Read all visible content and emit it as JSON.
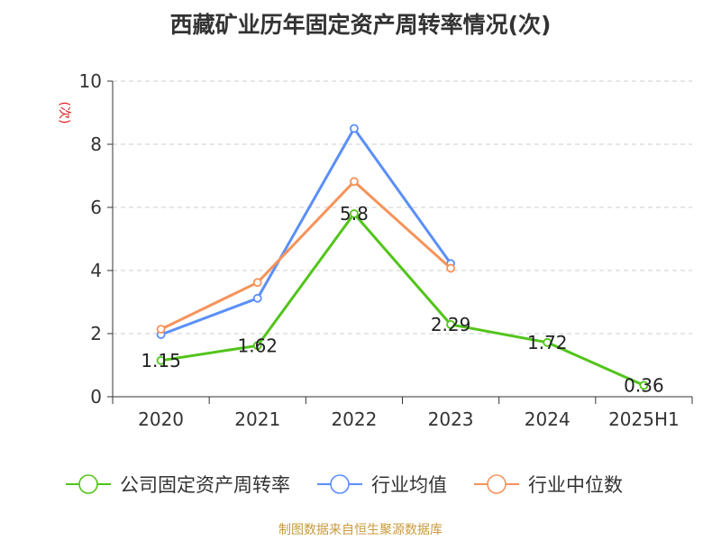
{
  "chart_data": {
    "type": "line",
    "title": "西藏矿业历年固定资产周转率情况(次)",
    "ylabel": "(次)",
    "xlabel": "",
    "categories": [
      "2020",
      "2021",
      "2022",
      "2023",
      "2024",
      "2025H1"
    ],
    "ylim": [
      0,
      10
    ],
    "yticks": [
      0,
      2,
      4,
      6,
      8,
      10
    ],
    "grid": true,
    "legend_position": "bottom",
    "series": [
      {
        "name": "公司固定资产周转率",
        "color": "#52c41a",
        "values": [
          1.15,
          1.62,
          5.8,
          2.29,
          1.72,
          0.36
        ],
        "labels": [
          "1.15",
          "1.62",
          "5.8",
          "2.29",
          "1.72",
          "0.36"
        ]
      },
      {
        "name": "行业均值",
        "color": "#5b8ff9",
        "values": [
          1.97,
          3.12,
          8.5,
          4.22,
          null,
          null
        ]
      },
      {
        "name": "行业中位数",
        "color": "#f6935a",
        "values": [
          2.14,
          3.62,
          6.82,
          4.07,
          null,
          null
        ]
      }
    ],
    "source": "制图数据来自恒生聚源数据库"
  }
}
